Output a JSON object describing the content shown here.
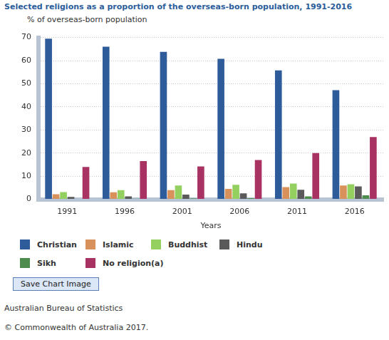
{
  "chart_data": {
    "type": "bar",
    "title": "Selected religions as a proportion of the overseas-born population, 1991-2016",
    "y_label": "% of overseas-born population",
    "x_label": "Years",
    "categories": [
      "1991",
      "1996",
      "2001",
      "2006",
      "2011",
      "2016"
    ],
    "series": [
      {
        "name": "Christian",
        "color": "#2e5c9a",
        "values": [
          69.5,
          66,
          63.8,
          60.8,
          55.8,
          47.2
        ]
      },
      {
        "name": "Islamic",
        "color": "#d9915c",
        "values": [
          2.2,
          3,
          4,
          4.5,
          5.3,
          6
        ]
      },
      {
        "name": "Buddhist",
        "color": "#94d060",
        "values": [
          3.1,
          4,
          6,
          6.3,
          6.8,
          6.5
        ]
      },
      {
        "name": "Hindu",
        "color": "#5a5a5a",
        "values": [
          1,
          1.3,
          2,
          2.6,
          4.1,
          5.6
        ]
      },
      {
        "name": "Sikh",
        "color": "#4e8c4e",
        "values": [
          0.2,
          0.3,
          0.4,
          0.5,
          1.3,
          1.7
        ]
      },
      {
        "name": "No religion(a)",
        "color": "#a83262",
        "values": [
          14,
          16.5,
          14.2,
          17,
          20,
          26.9
        ]
      }
    ],
    "ylim": [
      0,
      70
    ],
    "yticks": [
      0,
      10,
      20,
      30,
      40,
      50,
      60,
      70
    ],
    "grid": true,
    "legend": "bottom"
  },
  "page": {
    "button": "Save Chart Image",
    "source": "Australian Bureau of Statistics",
    "copyright": "© Commonwealth of Australia 2017."
  }
}
